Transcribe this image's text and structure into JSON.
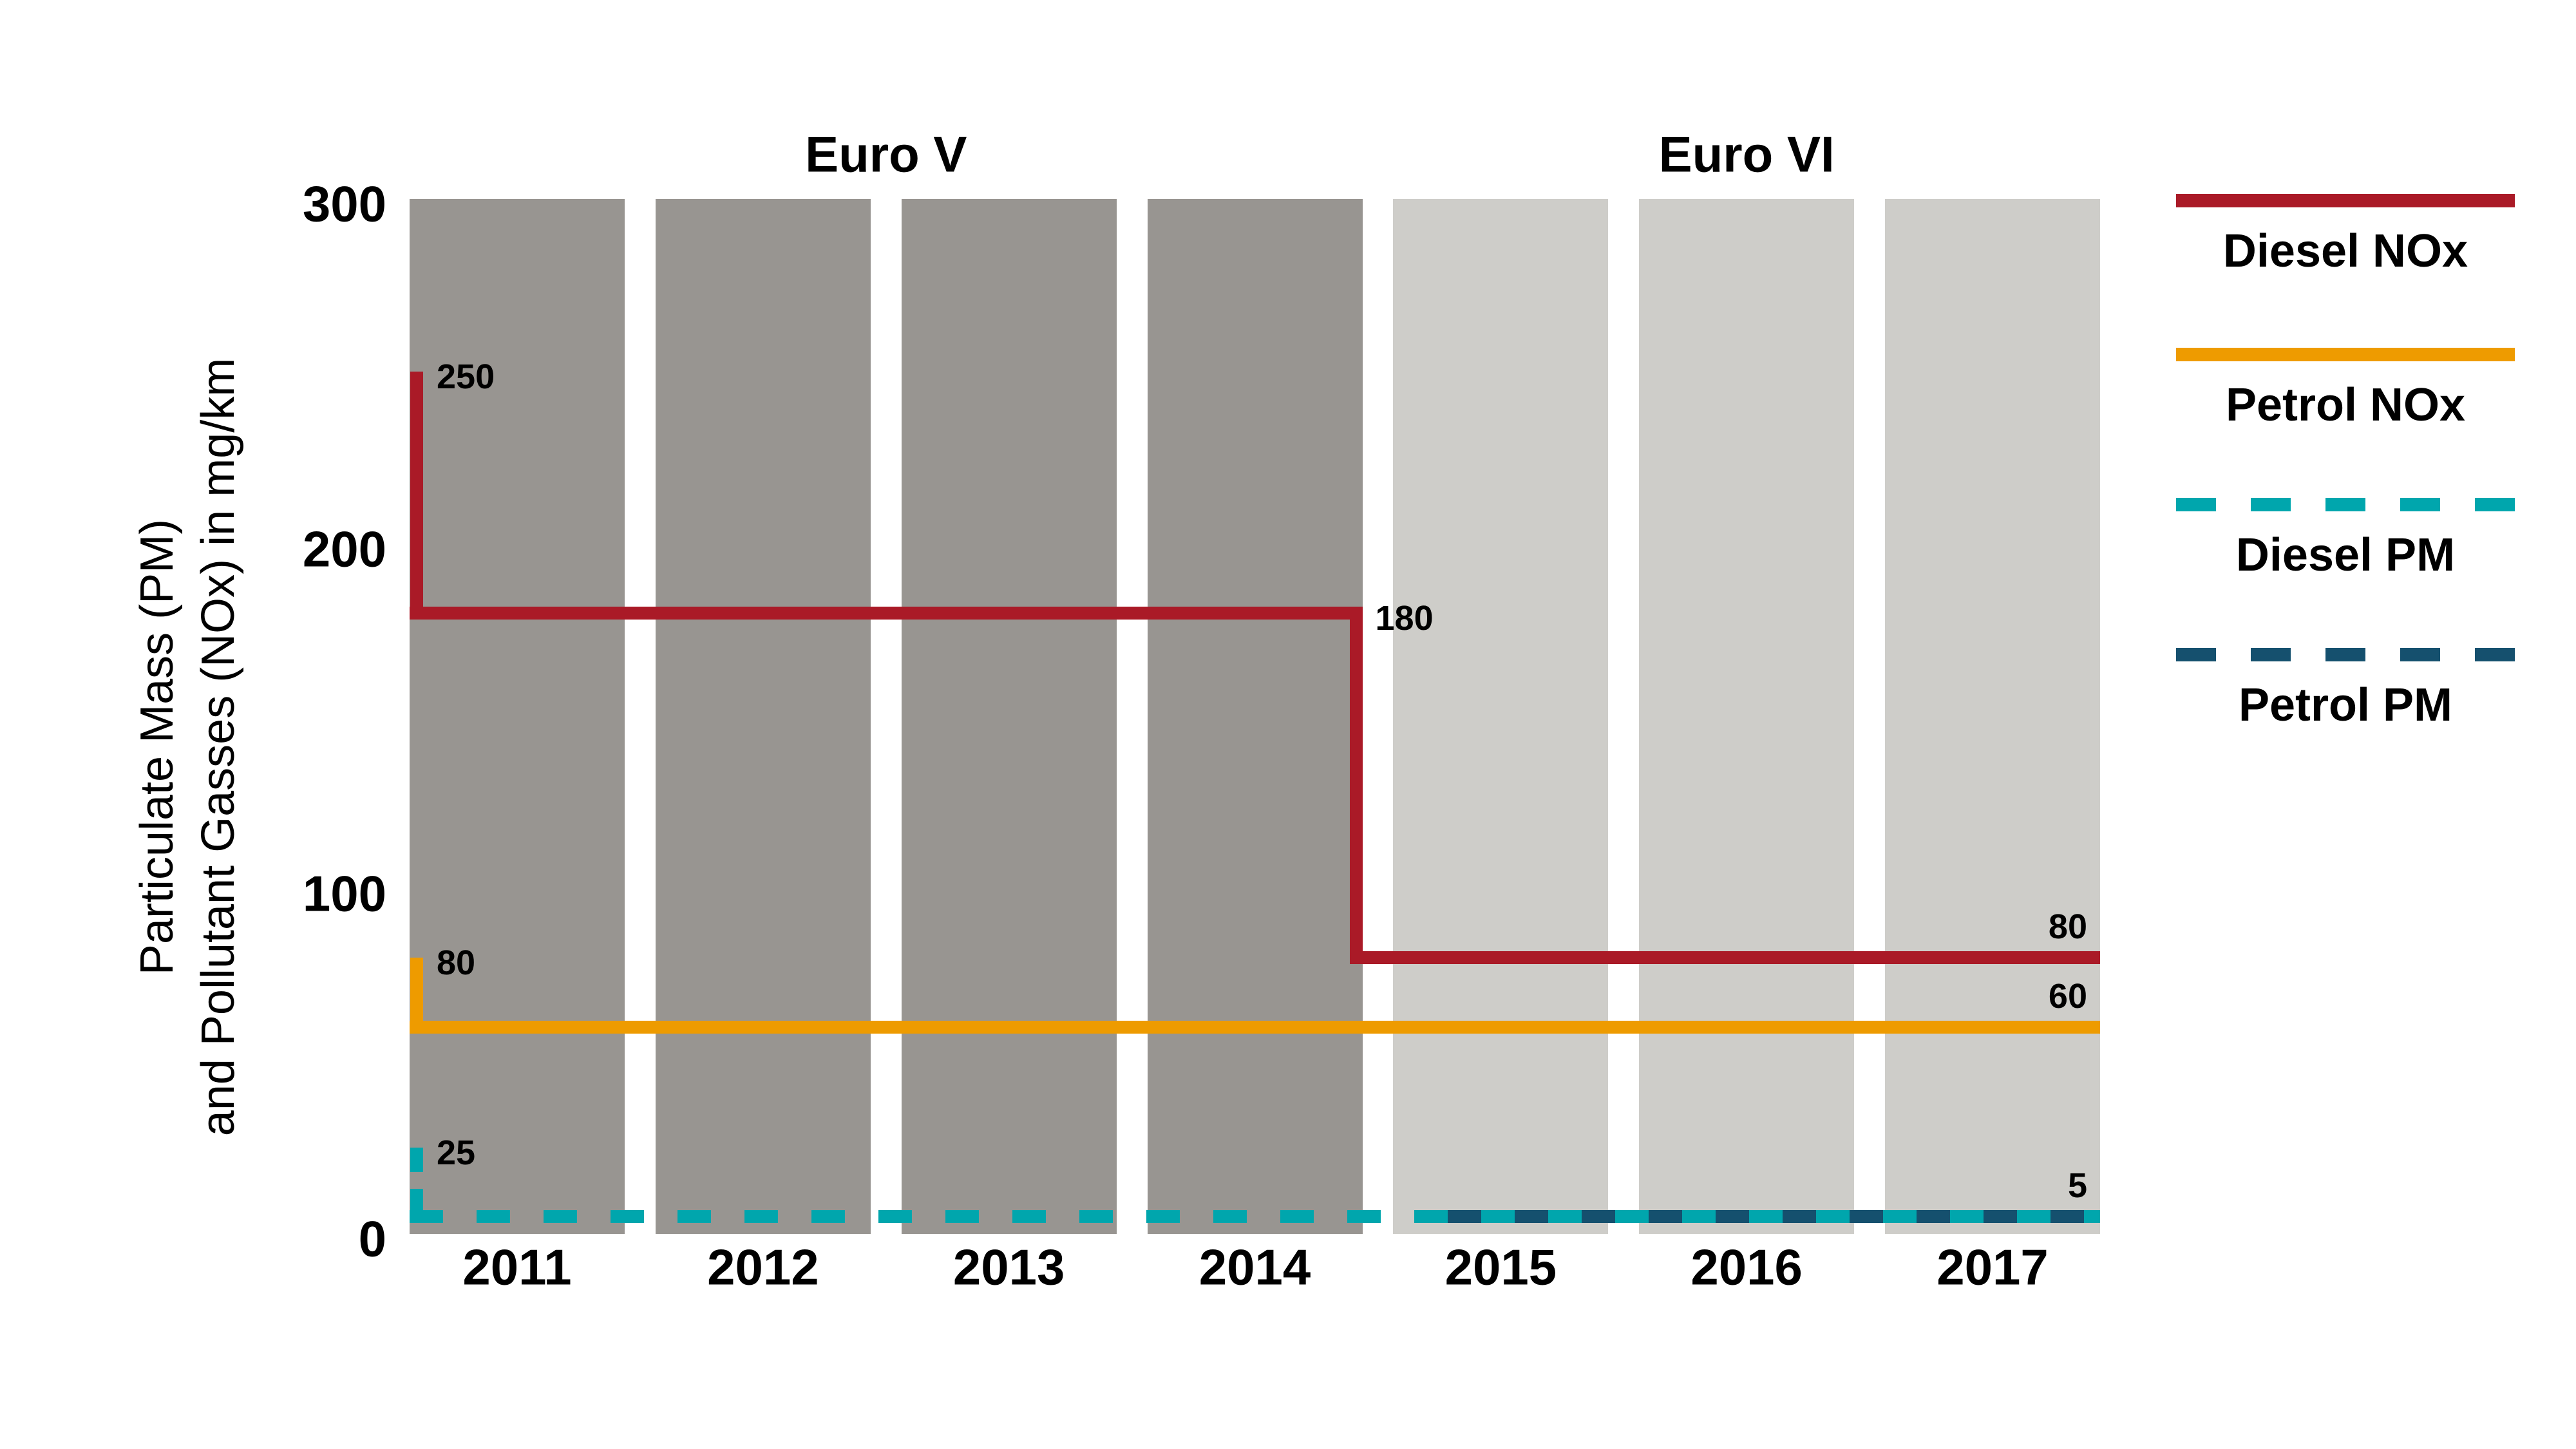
{
  "chart_data": {
    "type": "line",
    "subtype": "step-timeline",
    "title": "",
    "ylabel": [
      "Particulate Mass (PM)",
      "and Pollutant Gasses (NOx) in mg/km"
    ],
    "unit": "mg/km",
    "ylim": [
      0,
      300
    ],
    "yticks": [
      "0",
      "100",
      "200",
      "300"
    ],
    "grid": false,
    "categories": [
      "2011",
      "2012",
      "2013",
      "2014",
      "2015",
      "2016",
      "2017"
    ],
    "eras": [
      {
        "label": "Euro V",
        "years": [
          "2011",
          "2012",
          "2013",
          "2014"
        ],
        "band_color": "#989591"
      },
      {
        "label": "Euro VI",
        "years": [
          "2015",
          "2016",
          "2017"
        ],
        "band_color": "#CECDC9"
      }
    ],
    "series": [
      {
        "key": "diesel_nox",
        "name": "Diesel NOx",
        "color": "#AA1A27",
        "style": "solid",
        "entry_value": 250,
        "levels": [
          {
            "value": 180,
            "from": "2011",
            "to": "2014"
          },
          {
            "value": 80,
            "from": "2015",
            "to": "2017"
          }
        ]
      },
      {
        "key": "petrol_nox",
        "name": "Petrol NOx",
        "color": "#EE9B00",
        "style": "solid",
        "entry_value": 80,
        "levels": [
          {
            "value": 60,
            "from": "2011",
            "to": "2017"
          }
        ]
      },
      {
        "key": "diesel_pm",
        "name": "Diesel PM",
        "color": "#00A6AD",
        "style": "dashed",
        "entry_value": 25,
        "levels": [
          {
            "value": 5,
            "from": "2011",
            "to": "2017"
          }
        ]
      },
      {
        "key": "petrol_pm",
        "name": "Petrol PM",
        "color": "#15506E",
        "style": "dashed",
        "interleave_with": "diesel_pm",
        "levels": [
          {
            "value": 5,
            "from": "2015",
            "to": "2017"
          }
        ]
      }
    ],
    "annotations": [
      {
        "text": "250",
        "series": "diesel_nox",
        "anchor": "entry"
      },
      {
        "text": "80",
        "series": "petrol_nox",
        "anchor": "entry"
      },
      {
        "text": "25",
        "series": "diesel_pm",
        "anchor": "entry"
      },
      {
        "text": "180",
        "series": "diesel_nox",
        "anchor": "step",
        "level_index": 0
      },
      {
        "text": "80",
        "series": "diesel_nox",
        "anchor": "end",
        "level_index": 1
      },
      {
        "text": "60",
        "series": "petrol_nox",
        "anchor": "end",
        "level_index": 0
      },
      {
        "text": "5",
        "series": "diesel_pm",
        "anchor": "end",
        "level_index": 0
      }
    ],
    "legend": [
      {
        "label": "Diesel NOx",
        "color": "#AA1A27",
        "style": "solid"
      },
      {
        "label": "Petrol NOx",
        "color": "#EE9B00",
        "style": "solid"
      },
      {
        "label": "Diesel PM",
        "color": "#00A6AD",
        "style": "dashed"
      },
      {
        "label": "Petrol PM",
        "color": "#15506E",
        "style": "dashed"
      }
    ],
    "legend_position": "right"
  }
}
